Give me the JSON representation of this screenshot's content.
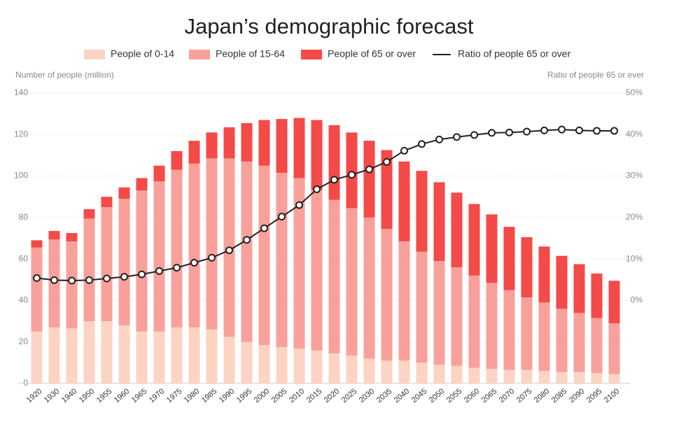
{
  "chart_data": {
    "type": "bar",
    "stacked": true,
    "title": "Japan’s demographic forecast",
    "y_label": "Number of people (million)",
    "y2_label": "Ratio of people 65 or ever",
    "categories": [
      "1920",
      "1930",
      "1940",
      "1950",
      "1955",
      "1960",
      "1965",
      "1970",
      "1975",
      "1980",
      "1985",
      "1990",
      "1995",
      "2000",
      "2005",
      "2010",
      "2015",
      "2020",
      "2025",
      "2030",
      "2035",
      "2040",
      "2045",
      "2050",
      "2055",
      "2060",
      "2065",
      "2070",
      "2075",
      "2080",
      "2085",
      "2090",
      "2095",
      "2100"
    ],
    "series": [
      {
        "name": "People of 0-14",
        "type": "bar",
        "color": "#fdd3c3",
        "values": [
          25,
          27,
          26.5,
          30,
          30,
          28,
          25,
          25,
          27,
          27,
          26,
          22.5,
          20,
          18.5,
          17.5,
          16.8,
          15.9,
          14.5,
          13.5,
          12,
          11,
          11,
          10,
          9,
          8.5,
          7.5,
          7,
          6.5,
          6.5,
          6,
          5.5,
          5.5,
          5,
          4.5
        ]
      },
      {
        "name": "People of 15-64",
        "type": "bar",
        "color": "#f9a09b",
        "values": [
          40.5,
          42.5,
          42,
          49.5,
          55,
          61,
          68,
          72.5,
          76,
          79,
          82.5,
          86,
          87,
          86.5,
          84,
          82.2,
          77.3,
          74,
          71,
          68,
          63.5,
          57.5,
          53.5,
          50,
          47.5,
          44.5,
          41.5,
          38.5,
          35,
          33,
          30.5,
          28.5,
          26.5,
          24.5
        ]
      },
      {
        "name": "People of 65 or over",
        "type": "bar",
        "color": "#f44a48",
        "values": [
          3.5,
          4,
          4,
          4.5,
          5,
          5.5,
          6,
          7.5,
          9,
          11,
          12.5,
          15,
          18.5,
          22,
          26,
          29,
          33.8,
          36,
          36.5,
          37,
          38,
          38.5,
          39,
          38,
          36,
          34.5,
          33,
          30.5,
          29,
          27,
          25.5,
          23.5,
          21.5,
          20.5
        ]
      },
      {
        "name": "Ratio of people 65 or over",
        "type": "line",
        "axis": "y2",
        "color": "#222222",
        "values": [
          5.4,
          4.9,
          4.8,
          4.9,
          5.3,
          5.7,
          6.3,
          7.1,
          7.9,
          9.1,
          10.3,
          12.1,
          14.6,
          17.4,
          20.2,
          23,
          26.8,
          29.1,
          30.3,
          31.6,
          33.4,
          36.1,
          37.7,
          38.8,
          39.4,
          39.9,
          40.4,
          40.5,
          40.7,
          41,
          41.2,
          41,
          40.9,
          40.9
        ]
      }
    ],
    "ylim": [
      0,
      140
    ],
    "yticks": [
      0,
      20,
      40,
      60,
      80,
      100,
      120,
      140
    ],
    "y2lim": [
      -20,
      50
    ],
    "y2ticks": [
      {
        "value": 0,
        "label": "0%"
      },
      {
        "value": 10,
        "label": "10%"
      },
      {
        "value": 20,
        "label": "20%"
      },
      {
        "value": 30,
        "label": "30%"
      },
      {
        "value": 40,
        "label": "40%"
      },
      {
        "value": 50,
        "label": "50%"
      }
    ],
    "grid": true,
    "legend": "top"
  }
}
